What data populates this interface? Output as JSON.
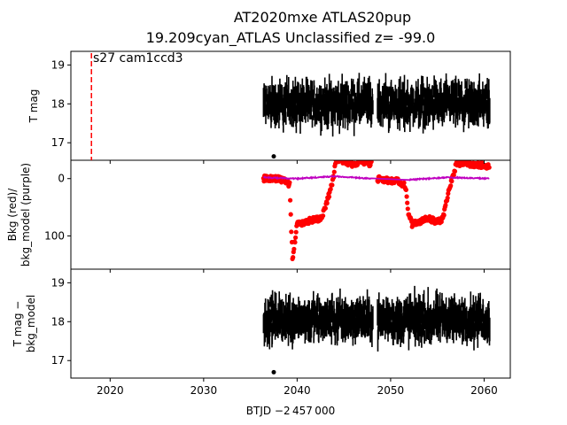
{
  "chart_data": {
    "type": "scatter",
    "title_line1": "AT2020mxe  ATLAS20pup",
    "title_line2": "19.209cyan_ATLAS Unclassified z= -99.0",
    "xlabel": "BTJD −2 457 000",
    "xlim": [
      2015.8,
      2062.8
    ],
    "xticks": [
      2020,
      2030,
      2040,
      2050,
      2060
    ],
    "annotation": "s27 cam1ccd3",
    "marker_line_x": 2018.0,
    "panels": [
      {
        "ylabel": "T mag",
        "ylim": [
          19.35,
          16.55
        ],
        "yticks": [
          17,
          18,
          19
        ],
        "series": [
          {
            "color": "#000000",
            "segments": [
              [
                2036.4,
                2048.1
              ],
              [
                2048.6,
                2060.6
              ]
            ],
            "mean": 18.0,
            "spread": 0.55,
            "errbar": 0.25,
            "outliers": [
              [
                2037.5,
                16.65
              ]
            ]
          }
        ]
      },
      {
        "ylabel_line1": "Bkg (red)/",
        "ylabel_line2": "bkg_model (purple)",
        "ylim": [
          -32,
          158
        ],
        "yticks": [
          0,
          100
        ],
        "series": [
          {
            "color": "#ff0000",
            "x": [
              2036.4,
              2037.5,
              2038.6,
              2039.2,
              2039.5,
              2040.0,
              2041.0,
              2042.0,
              2042.6,
              2043.2,
              2043.8,
              2044.2,
              2045.0,
              2046.0,
              2047.0,
              2048.0,
              2048.6,
              2049.5,
              2050.5,
              2051.0,
              2051.6,
              2051.9,
              2052.3,
              2053.0,
              2054.0,
              2055.0,
              2055.6,
              2056.2,
              2056.7,
              2057.0,
              2058.0,
              2059.0,
              2060.0,
              2060.6
            ],
            "y": [
              0,
              0,
              2,
              10,
              140,
              80,
              75,
              70,
              70,
              40,
              5,
              -35,
              -30,
              -25,
              -30,
              -25,
              0,
              3,
              4,
              5,
              15,
              60,
              80,
              75,
              70,
              75,
              70,
              20,
              -5,
              -25,
              -30,
              -22,
              -25,
              -20
            ]
          },
          {
            "color": "#bf00bf",
            "x": [
              2036.4,
              2040.0,
              2044.0,
              2048.0,
              2052.0,
              2056.0,
              2060.6
            ],
            "y": [
              -2,
              0,
              -4,
              0,
              2,
              -2,
              0
            ]
          }
        ]
      },
      {
        "ylabel_line1": "T mag −",
        "ylabel_line2": "bkg_model",
        "ylim": [
          19.35,
          16.55
        ],
        "yticks": [
          17,
          18,
          19
        ],
        "series": [
          {
            "color": "#000000",
            "segments": [
              [
                2036.4,
                2048.1
              ],
              [
                2048.6,
                2060.6
              ]
            ],
            "mean": 18.05,
            "spread": 0.55,
            "errbar": 0.25,
            "outliers": [
              [
                2037.5,
                16.7
              ]
            ]
          }
        ]
      }
    ]
  }
}
